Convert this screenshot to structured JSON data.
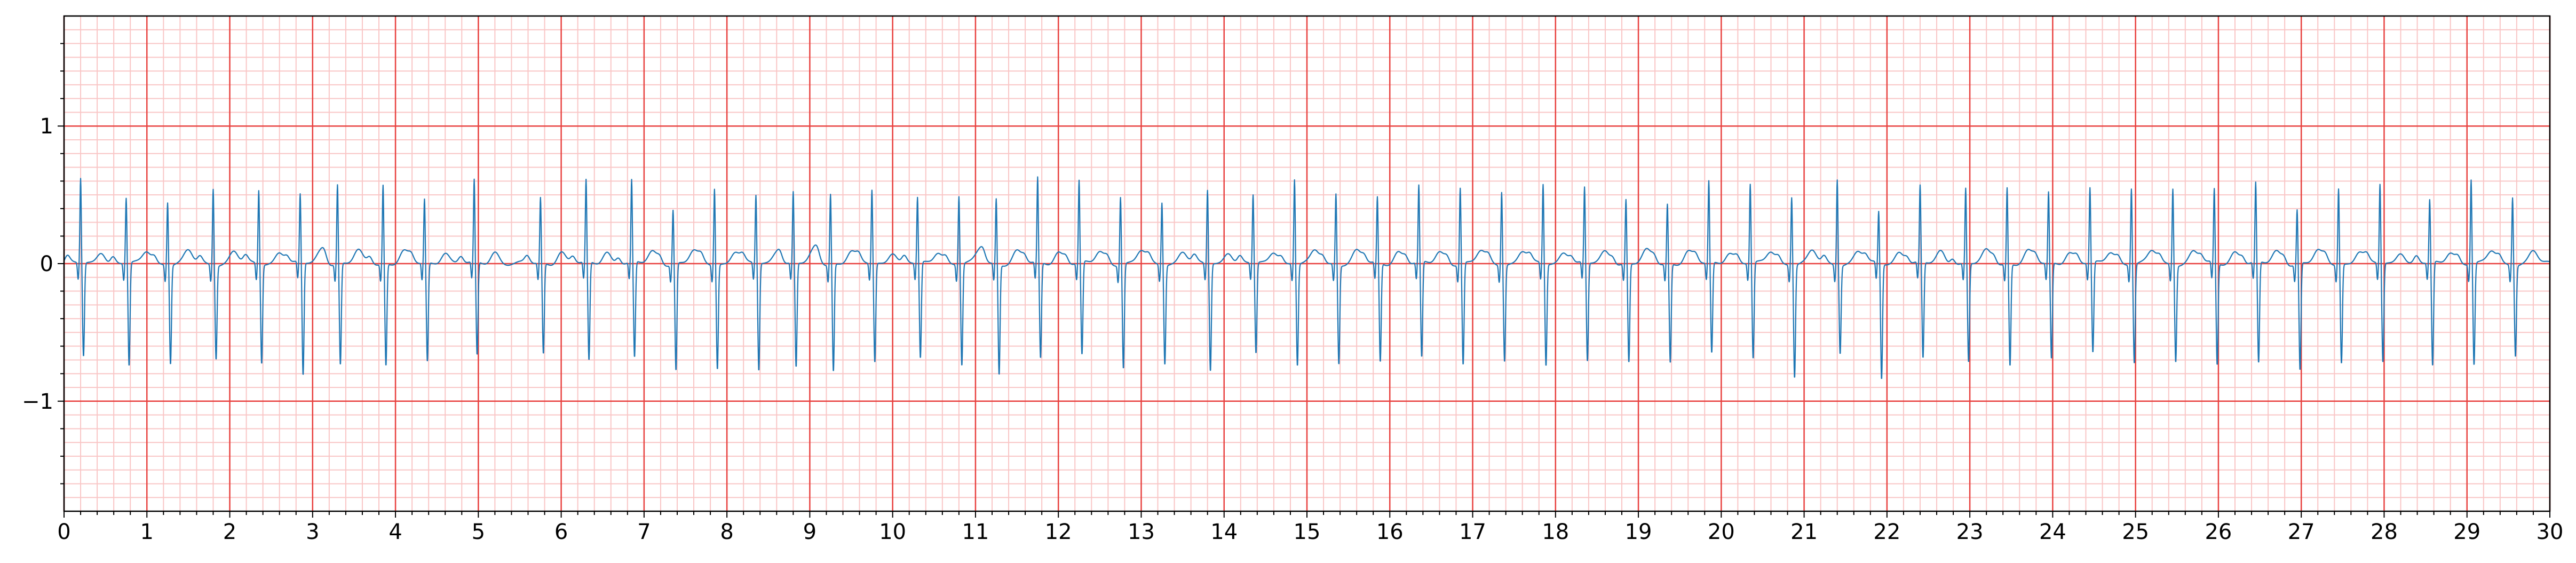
{
  "chart_data": {
    "type": "line",
    "title": "",
    "xlabel": "",
    "ylabel": "",
    "xlim": [
      0,
      30
    ],
    "ylim": [
      -1.8,
      1.8
    ],
    "x_ticks": [
      "0",
      "1",
      "2",
      "3",
      "4",
      "5",
      "6",
      "7",
      "8",
      "9",
      "10",
      "11",
      "12",
      "13",
      "14",
      "15",
      "16",
      "17",
      "18",
      "19",
      "20",
      "21",
      "22",
      "23",
      "24",
      "25",
      "26",
      "27",
      "28",
      "29",
      "30"
    ],
    "y_ticks": [
      {
        "value": -1,
        "label": "−1"
      },
      {
        "value": 0,
        "label": "0"
      },
      {
        "value": 1,
        "label": "1"
      }
    ],
    "grid": {
      "major_x_step": 1,
      "minor_x_step": 0.2,
      "major_y_step": 1,
      "minor_y_step": 0.1,
      "major_color": "#e8413f",
      "minor_color": "#f9c6c6"
    },
    "line_color": "#1f77b4",
    "description_values": {
      "beat_times_s": [
        0.2,
        0.75,
        1.25,
        1.8,
        2.35,
        2.85,
        3.3,
        3.85,
        4.35,
        4.95,
        5.75,
        6.3,
        6.85,
        7.35,
        7.85,
        8.35,
        8.8,
        9.25,
        9.75,
        10.3,
        10.8,
        11.25,
        11.75,
        12.25,
        12.75,
        13.25,
        13.8,
        14.35,
        14.85,
        15.35,
        15.85,
        16.35,
        16.85,
        17.35,
        17.85,
        18.35,
        18.85,
        19.35,
        19.85,
        20.35,
        20.85,
        21.4,
        21.9,
        22.4,
        22.95,
        23.45,
        23.95,
        24.45,
        24.95,
        25.45,
        25.95,
        26.45,
        26.95,
        27.45,
        27.95,
        28.55,
        29.05,
        29.55
      ],
      "r_peak_mv": [
        0.62,
        0.48,
        0.46,
        0.56,
        0.54,
        0.5,
        0.58,
        0.58,
        0.47,
        0.6,
        0.48,
        0.6,
        0.6,
        0.4,
        0.56,
        0.5,
        0.52,
        0.52,
        0.54,
        0.48,
        0.5,
        0.48,
        0.62,
        0.6,
        0.5,
        0.46,
        0.54,
        0.5,
        0.62,
        0.52,
        0.48,
        0.56,
        0.56,
        0.54,
        0.58,
        0.55,
        0.47,
        0.44,
        0.6,
        0.58,
        0.5,
        0.63,
        0.38,
        0.56,
        0.55,
        0.56,
        0.52,
        0.55,
        0.56,
        0.56,
        0.54,
        0.58,
        0.4,
        0.56,
        0.58,
        0.46,
        0.62,
        0.5
      ],
      "s_trough_mv": [
        -0.68,
        -0.75,
        -0.72,
        -0.68,
        -0.72,
        -0.82,
        -0.74,
        -0.74,
        -0.72,
        -0.68,
        -0.66,
        -0.72,
        -0.7,
        -0.78,
        -0.76,
        -0.78,
        -0.76,
        -0.78,
        -0.72,
        -0.7,
        -0.74,
        -0.8,
        -0.7,
        -0.68,
        -0.76,
        -0.72,
        -0.78,
        -0.66,
        -0.74,
        -0.72,
        -0.72,
        -0.7,
        -0.74,
        -0.7,
        -0.74,
        -0.72,
        -0.72,
        -0.72,
        -0.66,
        -0.7,
        -0.82,
        -0.64,
        -0.84,
        -0.7,
        -0.72,
        -0.74,
        -0.7,
        -0.66,
        -0.72,
        -0.7,
        -0.74,
        -0.74,
        -0.78,
        -0.72,
        -0.72,
        -0.76,
        -0.74,
        -0.66
      ]
    }
  }
}
